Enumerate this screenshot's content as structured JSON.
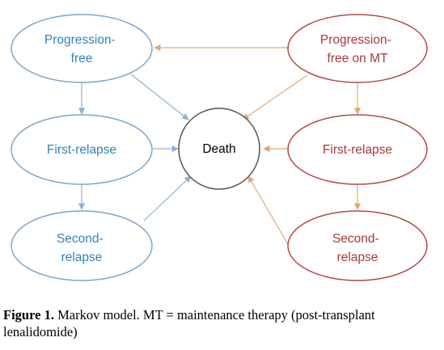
{
  "colors": {
    "blue_stroke": "#7da5c8",
    "blue_text": "#3282b3",
    "red_stroke": "#b04a47",
    "red_text": "#a53a36",
    "orange_arrow": "#e2a875",
    "blue_arrow": "#8fb2d3",
    "death_stroke": "#555555",
    "death_text": "#000000"
  },
  "nodes": {
    "pf": {
      "lines": [
        "Progression-",
        "free"
      ]
    },
    "fr": {
      "lines": [
        "First-relapse"
      ]
    },
    "sr": {
      "lines": [
        "Second-",
        "relapse"
      ]
    },
    "death": {
      "lines": [
        "Death"
      ]
    },
    "pfmt": {
      "lines": [
        "Progression-",
        "free on MT"
      ]
    },
    "frmt": {
      "lines": [
        "First-relapse"
      ]
    },
    "srmt": {
      "lines": [
        "Second-",
        "relapse"
      ]
    }
  },
  "caption": {
    "label": "Figure 1.",
    "text": " Markov model. MT = maintenance therapy (post-transplant lenalidomide)"
  }
}
